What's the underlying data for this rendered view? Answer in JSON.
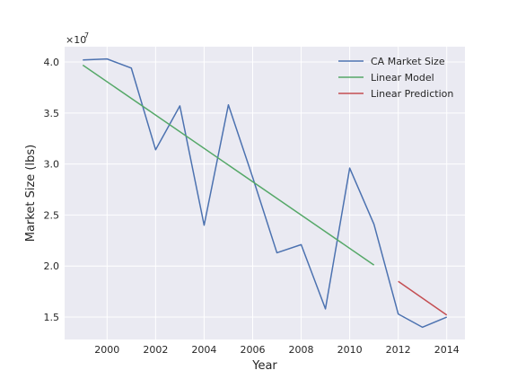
{
  "chart_data": {
    "type": "line",
    "xlabel": "Year",
    "ylabel": "Market Size (lbs)",
    "y_offset_label_base": "×10",
    "y_offset_label_exp": "7",
    "xlim": [
      1998.25,
      2014.75
    ],
    "ylim": [
      12800000,
      41500000
    ],
    "xticks": [
      2000,
      2002,
      2004,
      2006,
      2008,
      2010,
      2012,
      2014
    ],
    "xtick_labels": [
      "2000",
      "2002",
      "2004",
      "2006",
      "2008",
      "2010",
      "2012",
      "2014"
    ],
    "yticks": [
      15000000,
      20000000,
      25000000,
      30000000,
      35000000,
      40000000
    ],
    "ytick_labels": [
      "1.5",
      "2.0",
      "2.5",
      "3.0",
      "3.5",
      "4.0"
    ],
    "grid": true,
    "legend_position": "top-right",
    "colors": {
      "plot_bg": "#eaeaf2",
      "grid": "#ffffff"
    },
    "series": [
      {
        "name": "CA Market Size",
        "color": "#4c72b0",
        "x": [
          1999,
          2000,
          2001,
          2002,
          2003,
          2004,
          2005,
          2006,
          2007,
          2008,
          2009,
          2010,
          2011,
          2012,
          2013,
          2014
        ],
        "y": [
          40200000,
          40300000,
          39400000,
          31400000,
          35700000,
          24000000,
          35800000,
          28700000,
          21300000,
          22100000,
          15800000,
          29600000,
          24100000,
          15300000,
          14000000,
          15000000
        ]
      },
      {
        "name": "Linear Model",
        "color": "#55a868",
        "x": [
          1999,
          2011
        ],
        "y": [
          39700000,
          20100000
        ]
      },
      {
        "name": "Linear Prediction",
        "color": "#c44e52",
        "x": [
          2012,
          2014
        ],
        "y": [
          18500000,
          15200000
        ]
      }
    ]
  }
}
